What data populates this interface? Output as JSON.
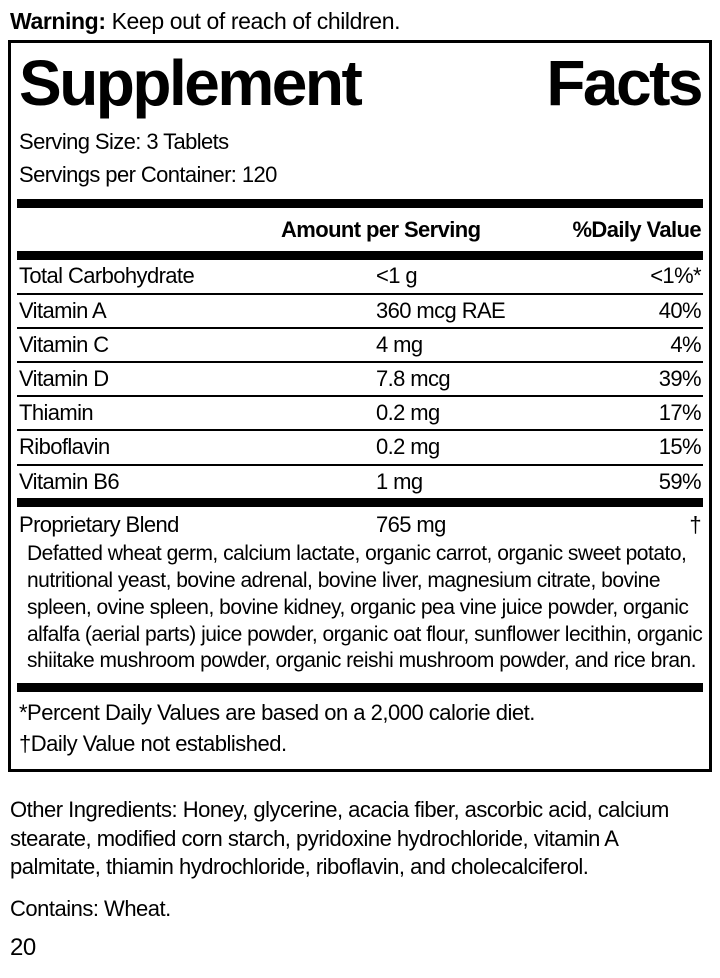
{
  "warning": {
    "label": "Warning:",
    "text": " Keep out of reach of children."
  },
  "panel": {
    "title": {
      "word1": "Supplement",
      "word2": "Facts"
    },
    "serving_size": "Serving Size: 3 Tablets",
    "servings_per_container": "Servings per Container: 120",
    "header": {
      "amount": "Amount per Serving",
      "daily_value": "%Daily Value"
    },
    "rows": [
      {
        "name": "Total Carbohydrate",
        "amount": "<1 g",
        "dv": "<1%*"
      },
      {
        "name": "Vitamin A",
        "amount": "360 mcg RAE",
        "dv": "40%"
      },
      {
        "name": "Vitamin C",
        "amount": "4 mg",
        "dv": "4%"
      },
      {
        "name": "Vitamin D",
        "amount": "7.8 mcg",
        "dv": "39%"
      },
      {
        "name": "Thiamin",
        "amount": "0.2 mg",
        "dv": "17%"
      },
      {
        "name": "Riboflavin",
        "amount": "0.2 mg",
        "dv": "15%"
      },
      {
        "name": "Vitamin B6",
        "amount": "1 mg",
        "dv": "59%"
      }
    ],
    "blend": {
      "name": "Proprietary Blend",
      "amount": "765 mg",
      "dv": "†",
      "description": "Defatted wheat germ, calcium lactate, organic carrot, organic sweet potato, nutritional yeast, bovine adrenal, bovine liver, magnesium citrate, bovine spleen, ovine spleen, bovine kidney, organic pea vine juice powder, organic alfalfa (aerial parts) juice powder, organic oat flour, sunflower lecithin, organic shiitake mushroom powder, organic reishi mushroom powder, and rice bran."
    },
    "footnotes": {
      "percent": "*Percent Daily Values are based on a 2,000 calorie diet.",
      "dagger": "†Daily Value not established."
    }
  },
  "other_ingredients": "Other Ingredients: Honey, glycerine, acacia fiber, ascorbic acid, calcium stearate,  modified corn starch, pyridoxine hydrochloride, vitamin A palmitate, thiamin hydrochloride, riboflavin, and cholecalciferol.",
  "contains": "Contains: Wheat.",
  "page_number": "20",
  "colors": {
    "ink": "#000000",
    "background": "#ffffff"
  }
}
